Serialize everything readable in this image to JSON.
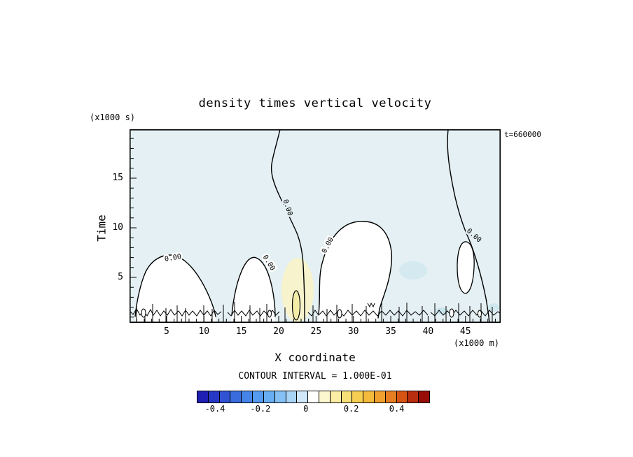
{
  "figure": {
    "title": "density times vertical velocity",
    "time_annotation": "t=660000",
    "y_units": "(x1000 s)",
    "x_units": "(x1000 m)",
    "y_axis_label": "Time",
    "x_axis_label": "X coordinate",
    "contour_interval_text": "CONTOUR INTERVAL = 1.000E-01"
  },
  "chart_data": {
    "type": "heatmap",
    "chart_kind": "filled contour plot (x-time hovmoller)",
    "title": "density times vertical velocity",
    "annotation": "t=660000",
    "xaxis": {
      "label": "X coordinate",
      "units": "(x1000 m)",
      "lim": [
        0,
        50
      ],
      "major_ticks": [
        5,
        10,
        15,
        20,
        25,
        30,
        35,
        40,
        45
      ],
      "minor_tick_step": 1
    },
    "yaxis": {
      "label": "Time",
      "units": "(x1000 s)",
      "lim": [
        0,
        20
      ],
      "major_ticks": [
        5,
        10,
        15
      ],
      "minor_tick_step": 1
    },
    "contour": {
      "interval_label": "CONTOUR INTERVAL = 1.000E-01",
      "interval": 0.1,
      "labeled_level": "0.00",
      "zero_contour_label_points": [
        {
          "x": 21,
          "t": 11.2
        },
        {
          "x": 6,
          "t": 6.8
        },
        {
          "x": 18.5,
          "t": 6.0
        },
        {
          "x": 26.5,
          "t": 8.0
        },
        {
          "x": 45.5,
          "t": 8.9
        }
      ]
    },
    "colorbar": {
      "range": [
        -0.48,
        0.54
      ],
      "ticks": [
        "-0.4",
        "-0.2",
        "0",
        "0.2",
        "0.4"
      ],
      "tick_values": [
        -0.4,
        -0.2,
        0,
        0.2,
        0.4
      ],
      "colors": [
        "#1f1fb4",
        "#2838c6",
        "#3152d2",
        "#3a6cde",
        "#4584e8",
        "#549aee",
        "#68aef2",
        "#84c0f4",
        "#a8d4f6",
        "#d0e8fa",
        "#ffffff",
        "#fdf7d0",
        "#fbeda4",
        "#f8e078",
        "#f6cf52",
        "#f3ba3c",
        "#efa02e",
        "#e67e22",
        "#d65414",
        "#b92e0e",
        "#970e08"
      ]
    },
    "field_summary": "Field is weakly negative (pale blue, roughly -0.05) over most of the x-time domain. Zero contours labeled 0.00 outline near-surface mounds of near-zero/positive values below t≈7 around x≈3-12, x≈15-20, x≈26-34 and a closed cell near x≈45, t≈5-7; a zero contour descends from the top near x≈20 and near x≈43. A weak positive plume (pale yellow, up to ≈0.1-0.2) sits near x≈22 below t≈5. Many small noisy zero contours line the bottom boundary (t<2)."
  }
}
